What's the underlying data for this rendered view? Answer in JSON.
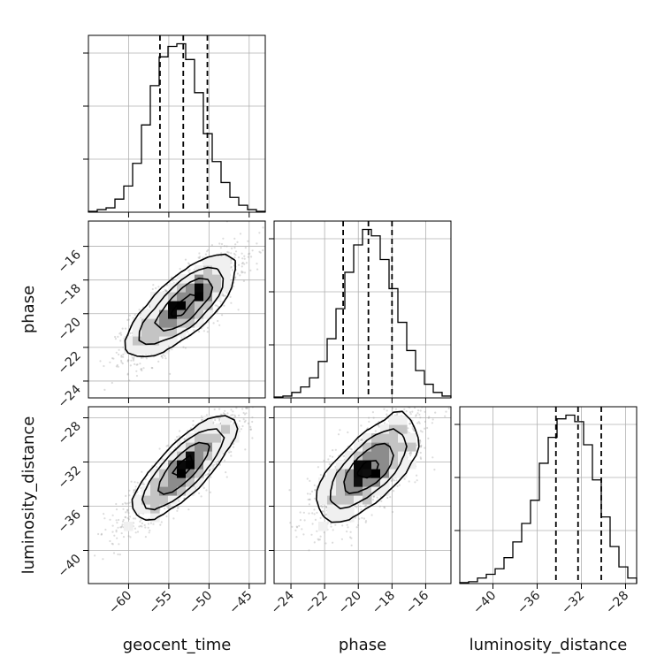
{
  "chart_data": {
    "type": "corner",
    "parameters": [
      "geocent_time",
      "phase",
      "luminosity_distance"
    ],
    "ranges": {
      "geocent_time": [
        -65,
        -43
      ],
      "phase": [
        -25,
        -14.5
      ],
      "luminosity_distance": [
        -43,
        -27
      ]
    },
    "ticks": {
      "geocent_time": [
        -60,
        -55,
        -50,
        -45
      ],
      "phase": [
        -24,
        -22,
        -20,
        -18,
        -16
      ],
      "luminosity_distance": [
        -40,
        -36,
        -32,
        -28
      ]
    },
    "tick_labels": {
      "geocent_time": [
        "−60",
        "−55",
        "−50",
        "−45"
      ],
      "phase": [
        "−24",
        "−22",
        "−20",
        "−18",
        "−16"
      ],
      "luminosity_distance": [
        "−40",
        "−36",
        "−32",
        "−28"
      ]
    },
    "quantiles": {
      "geocent_time": [
        -56.1,
        -53.2,
        -50.2
      ],
      "phase": [
        -20.9,
        -19.4,
        -18.0
      ],
      "luminosity_distance": [
        -34.3,
        -32.3,
        -30.2
      ]
    },
    "histograms": {
      "geocent_time": {
        "edges": [
          -65,
          -63.9,
          -62.8,
          -61.7,
          -60.6,
          -59.5,
          -58.4,
          -57.3,
          -56.2,
          -55.1,
          -54,
          -52.9,
          -51.8,
          -50.7,
          -49.6,
          -48.5,
          -47.4,
          -46.3,
          -45.2,
          -44.1,
          -43
        ],
        "counts": [
          1,
          3,
          5,
          15,
          30,
          56,
          100,
          145,
          178,
          190,
          193,
          175,
          137,
          90,
          58,
          34,
          17,
          8,
          3,
          1
        ]
      },
      "phase": {
        "edges": [
          -25,
          -24.475,
          -23.95,
          -23.425,
          -22.9,
          -22.375,
          -21.85,
          -21.325,
          -20.8,
          -20.275,
          -19.75,
          -19.225,
          -18.7,
          -18.175,
          -17.65,
          -17.125,
          -16.6,
          -16.075,
          -15.55,
          -15.025,
          -14.5
        ],
        "counts": [
          1,
          2,
          6,
          12,
          22,
          40,
          65,
          98,
          138,
          168,
          185,
          178,
          152,
          120,
          83,
          52,
          30,
          15,
          6,
          2
        ]
      },
      "luminosity_distance": {
        "edges": [
          -43,
          -42.2,
          -41.4,
          -40.6,
          -39.8,
          -39,
          -38.2,
          -37.4,
          -36.6,
          -35.8,
          -35,
          -34.2,
          -33.4,
          -32.6,
          -31.8,
          -31,
          -30.2,
          -29.4,
          -28.6,
          -27.8,
          -27
        ],
        "counts": [
          1,
          2,
          6,
          10,
          16,
          28,
          45,
          65,
          90,
          130,
          158,
          178,
          182,
          175,
          150,
          112,
          72,
          40,
          18,
          6
        ]
      }
    },
    "pairs": [
      {
        "x": "geocent_time",
        "y": "phase",
        "mean": [
          -53.2,
          -19.5
        ],
        "sd": [
          3.3,
          1.45
        ],
        "rho": 0.78
      },
      {
        "x": "geocent_time",
        "y": "luminosity_distance",
        "mean": [
          -53.2,
          -32.6
        ],
        "sd": [
          3.3,
          2.35
        ],
        "rho": 0.86
      },
      {
        "x": "phase",
        "y": "luminosity_distance",
        "mean": [
          -19.4,
          -32.6
        ],
        "sd": [
          1.45,
          2.35
        ],
        "rho": 0.72
      }
    ],
    "grid": true,
    "plot_style": "2D histogram with scatter points and 0.5/1/1.5/2-sigma density contours; 1D histograms with dashed quantile lines"
  }
}
